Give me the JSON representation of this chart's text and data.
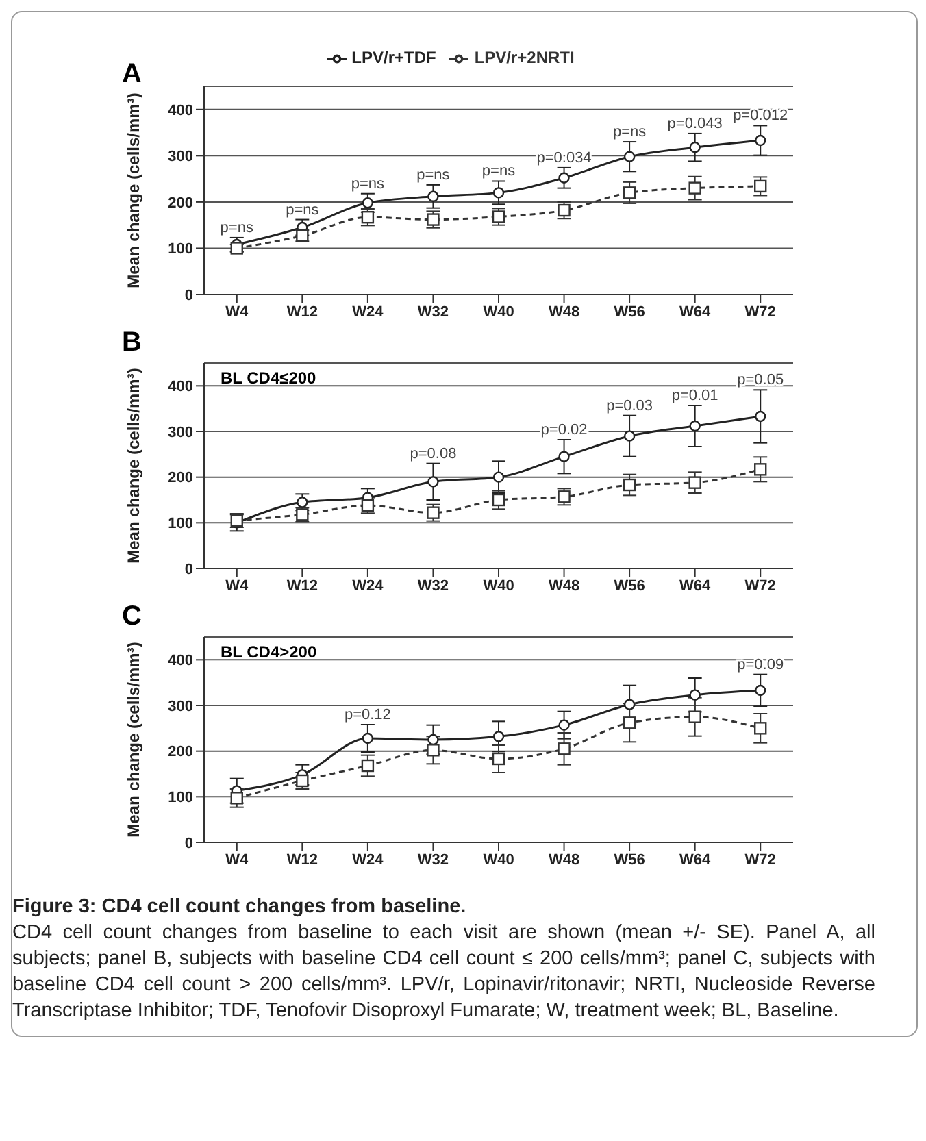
{
  "chart_data": [
    {
      "type": "line",
      "title": "A",
      "categories": [
        "W4",
        "W12",
        "W24",
        "W32",
        "W40",
        "W48",
        "W56",
        "W64",
        "W72"
      ],
      "ylabel": "Mean change (cells/mm³)",
      "ylim": [
        0,
        450
      ],
      "yticks": [
        0,
        100,
        200,
        300,
        400
      ],
      "grid": "y",
      "legend": "top",
      "series": [
        {
          "name": "LPV/r+TDF",
          "color": "#222222",
          "marker": "circle",
          "line_style": "solid",
          "values": [
            108,
            145,
            198,
            212,
            220,
            252,
            298,
            318,
            333
          ],
          "errors": [
            15,
            17,
            20,
            25,
            25,
            22,
            32,
            30,
            32
          ]
        },
        {
          "name": "LPV/r+2NRTI",
          "color": "#333333",
          "marker": "square",
          "line_style": "dashed",
          "values": [
            100,
            127,
            167,
            162,
            168,
            182,
            220,
            230,
            234
          ],
          "errors": [
            8,
            12,
            18,
            18,
            18,
            18,
            23,
            25,
            20
          ]
        }
      ],
      "annotations": [
        {
          "text": "p=ns",
          "x": "W4",
          "y": 123
        },
        {
          "text": "p=ns",
          "x": "W12",
          "y": 162
        },
        {
          "text": "p=ns",
          "x": "W24",
          "y": 218
        },
        {
          "text": "p=ns",
          "x": "W32",
          "y": 237
        },
        {
          "text": "p=ns",
          "x": "W40",
          "y": 245
        },
        {
          "text": "p=0.034",
          "x": "W48",
          "y": 274
        },
        {
          "text": "p=ns",
          "x": "W56",
          "y": 330
        },
        {
          "text": "p=0.043",
          "x": "W64",
          "y": 348
        },
        {
          "text": "p=0.012",
          "x": "W72",
          "y": 365
        }
      ]
    },
    {
      "type": "line",
      "title": "B",
      "subtitle": "BL CD4≤200",
      "categories": [
        "W4",
        "W12",
        "W24",
        "W32",
        "W40",
        "W48",
        "W56",
        "W64",
        "W72"
      ],
      "ylabel": "Mean change (cells/mm³)",
      "ylim": [
        0,
        450
      ],
      "yticks": [
        0,
        100,
        200,
        300,
        400
      ],
      "grid": "y",
      "series": [
        {
          "color": "#222222",
          "marker": "circle",
          "line_style": "solid",
          "values": [
            100,
            145,
            155,
            190,
            200,
            245,
            290,
            312,
            333
          ],
          "errors": [
            18,
            18,
            20,
            40,
            35,
            37,
            45,
            45,
            58
          ]
        },
        {
          "color": "#333333",
          "marker": "square",
          "line_style": "dashed",
          "values": [
            105,
            118,
            138,
            122,
            150,
            157,
            183,
            188,
            217
          ],
          "errors": [
            15,
            15,
            17,
            18,
            20,
            18,
            23,
            23,
            27
          ]
        }
      ],
      "annotations": [
        {
          "text": "p=0.08",
          "x": "W32",
          "y": 230
        },
        {
          "text": "p=0.02",
          "x": "W48",
          "y": 282
        },
        {
          "text": "p=0.03",
          "x": "W56",
          "y": 335
        },
        {
          "text": "p=0.01",
          "x": "W64",
          "y": 357
        },
        {
          "text": "p=0.05",
          "x": "W72",
          "y": 391
        }
      ]
    },
    {
      "type": "line",
      "title": "C",
      "subtitle": "BL CD4>200",
      "categories": [
        "W4",
        "W12",
        "W24",
        "W32",
        "W40",
        "W48",
        "W56",
        "W64",
        "W72"
      ],
      "ylabel": "Mean change (cells/mm³)",
      "ylim": [
        0,
        450
      ],
      "yticks": [
        0,
        100,
        200,
        300,
        400
      ],
      "grid": "y",
      "series": [
        {
          "color": "#222222",
          "marker": "circle",
          "line_style": "solid",
          "values": [
            113,
            148,
            228,
            225,
            232,
            257,
            302,
            323,
            333
          ],
          "errors": [
            27,
            22,
            30,
            32,
            33,
            30,
            42,
            37,
            35
          ]
        },
        {
          "color": "#333333",
          "marker": "square",
          "line_style": "dashed",
          "values": [
            97,
            135,
            168,
            202,
            183,
            205,
            262,
            275,
            250
          ],
          "errors": [
            20,
            18,
            23,
            30,
            30,
            35,
            42,
            42,
            32
          ]
        }
      ],
      "annotations": [
        {
          "text": "p=0.12",
          "x": "W24",
          "y": 258
        },
        {
          "text": "p=0.09",
          "x": "W72",
          "y": 368
        },
        "Figure 3: CD4 cell count changes from baseline.",
        "CD4 cell count changes from baseline to each visit are shown (mean +/- SE). Panel A, all subjects; panel B, subjects with baseline CD4 cell count ≤ 200 cells/mm³; panel C, subjects with baseline CD4 cell count > 200 cells/mm³. LPV/r, Lopinavir/ritonavir; NRTI, Nucleoside Reverse Transcriptase Inhibitor; TDF, Tenofovir Disoproxyl Fumarate; W, treatment week;  BL, Baseline."
      ]
    }
  ]
}
